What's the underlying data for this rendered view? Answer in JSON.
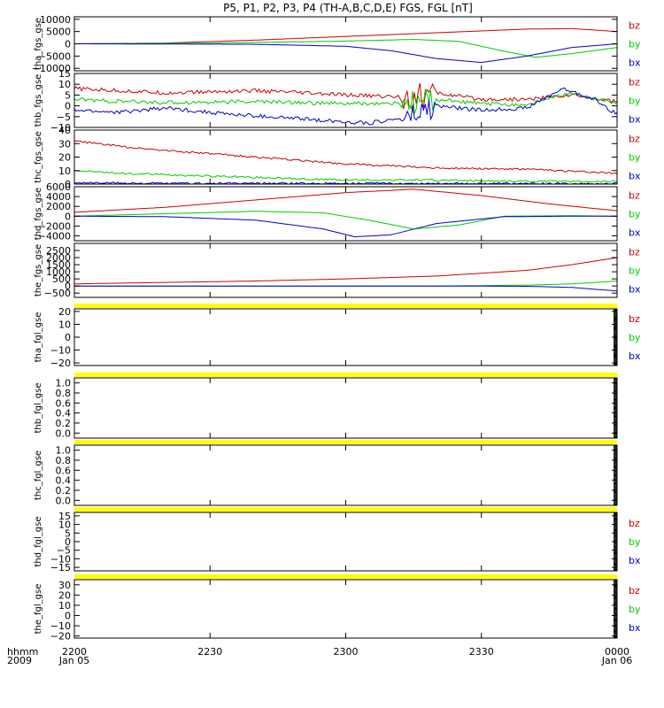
{
  "title": "P5, P1, P2, P3, P4 (TH-A,B,C,D,E) FGS, FGL [nT]",
  "x_axis": {
    "ticks": [
      {
        "label": "2200",
        "sub": "Jan 05",
        "t": 0
      },
      {
        "label": "2230",
        "sub": "",
        "t": 30
      },
      {
        "label": "2300",
        "sub": "",
        "t": 60
      },
      {
        "label": "2330",
        "sub": "",
        "t": 90
      },
      {
        "label": "0000",
        "sub": "Jan 06",
        "t": 120
      }
    ],
    "corner_label": "hhmm",
    "corner_year": "2009",
    "range_minutes": [
      0,
      120
    ]
  },
  "colors": {
    "bz": "#cc0000",
    "by": "#00cc00",
    "bx": "#0000cc",
    "gap": "#ffff00",
    "axis": "#000000"
  },
  "chart_data": [
    {
      "type": "line",
      "ylabel": "tha_fgs_gse",
      "ylim": [
        -11000,
        11000
      ],
      "yticks": [
        {
          "v": 10000,
          "l": "10000"
        },
        {
          "v": 5000,
          "l": "5000"
        },
        {
          "v": 0,
          "l": "0"
        },
        {
          "v": -5000,
          "l": "−5000"
        },
        {
          "v": -10000,
          "l": "−10000"
        }
      ],
      "legend": [
        "bz",
        "by",
        "bx"
      ],
      "gap_above": false,
      "series": [
        {
          "name": "bz",
          "x": [
            0,
            20,
            40,
            60,
            80,
            100,
            110,
            120
          ],
          "y": [
            0,
            300,
            1500,
            3000,
            4500,
            6000,
            6200,
            5000
          ]
        },
        {
          "name": "by",
          "x": [
            0,
            30,
            60,
            75,
            85,
            95,
            102,
            110,
            120
          ],
          "y": [
            0,
            300,
            1100,
            1800,
            1000,
            -3000,
            -5500,
            -4000,
            -1500
          ]
        },
        {
          "name": "bx",
          "x": [
            0,
            40,
            60,
            70,
            80,
            90,
            100,
            110,
            120
          ],
          "y": [
            0,
            -200,
            -1000,
            -2800,
            -6000,
            -7600,
            -5000,
            -1500,
            0
          ]
        }
      ]
    },
    {
      "type": "line",
      "ylabel": "thb_fgs_gse",
      "ylim": [
        -10,
        15
      ],
      "yticks": [
        {
          "v": 15,
          "l": "15"
        },
        {
          "v": 10,
          "l": "10"
        },
        {
          "v": 5,
          "l": "5"
        },
        {
          "v": 0,
          "l": "0"
        },
        {
          "v": -5,
          "l": "−5"
        },
        {
          "v": -10,
          "l": "−10"
        }
      ],
      "legend": [
        "bz",
        "by",
        "bx"
      ],
      "gap_above": false,
      "series": [
        {
          "name": "bz",
          "x": [
            0,
            10,
            20,
            40,
            60,
            75,
            80,
            90,
            100,
            110,
            120
          ],
          "y": [
            8,
            7,
            6,
            7,
            5,
            4,
            6,
            3,
            3,
            5,
            2
          ]
        },
        {
          "name": "by",
          "x": [
            0,
            10,
            20,
            40,
            60,
            75,
            80,
            90,
            100,
            110,
            120
          ],
          "y": [
            3,
            2,
            1.5,
            2,
            1,
            1,
            3,
            1,
            0.5,
            6,
            1
          ]
        },
        {
          "name": "bx",
          "x": [
            0,
            10,
            20,
            35,
            50,
            65,
            75,
            80,
            90,
            100,
            108,
            115,
            120
          ],
          "y": [
            -2,
            -3,
            -1,
            -4,
            -6,
            -8,
            -5,
            0,
            -2,
            -1,
            8,
            3,
            -4
          ]
        }
      ]
    },
    {
      "type": "line",
      "ylabel": "thc_fgs_gse",
      "ylim": [
        0,
        40
      ],
      "yticks": [
        {
          "v": 40,
          "l": "40"
        },
        {
          "v": 30,
          "l": "30"
        },
        {
          "v": 20,
          "l": "20"
        },
        {
          "v": 10,
          "l": "10"
        },
        {
          "v": 0,
          "l": "0"
        }
      ],
      "legend": [
        "bz",
        "by",
        "bx"
      ],
      "gap_above": false,
      "series": [
        {
          "name": "bz",
          "x": [
            0,
            10,
            20,
            40,
            60,
            80,
            100,
            120
          ],
          "y": [
            32,
            28,
            25,
            20,
            15,
            12,
            11,
            8
          ]
        },
        {
          "name": "by",
          "x": [
            0,
            10,
            20,
            40,
            60,
            80,
            100,
            120
          ],
          "y": [
            10,
            8,
            7,
            5,
            3,
            3,
            2,
            2
          ]
        },
        {
          "name": "bx",
          "x": [
            0,
            20,
            40,
            60,
            80,
            100,
            120
          ],
          "y": [
            1,
            0.5,
            0.5,
            0.5,
            0.5,
            0.3,
            0.2
          ]
        }
      ]
    },
    {
      "type": "line",
      "ylabel": "thd_fgs_gse",
      "ylim": [
        -5000,
        6000
      ],
      "yticks": [
        {
          "v": 6000,
          "l": "6000"
        },
        {
          "v": 4000,
          "l": "4000"
        },
        {
          "v": 2000,
          "l": "2000"
        },
        {
          "v": 0,
          "l": "0"
        },
        {
          "v": -2000,
          "l": "−2000"
        },
        {
          "v": -4000,
          "l": "−4000"
        }
      ],
      "legend": [
        "bz",
        "by",
        "bx"
      ],
      "gap_above": false,
      "series": [
        {
          "name": "bz",
          "x": [
            0,
            20,
            40,
            60,
            75,
            90,
            105,
            120
          ],
          "y": [
            800,
            1800,
            3300,
            4800,
            5500,
            4200,
            2500,
            1100
          ]
        },
        {
          "name": "by",
          "x": [
            0,
            20,
            40,
            55,
            65,
            75,
            85,
            95,
            110,
            120
          ],
          "y": [
            0,
            500,
            1000,
            700,
            -800,
            -2600,
            -1800,
            0,
            100,
            0
          ]
        },
        {
          "name": "bx",
          "x": [
            0,
            20,
            40,
            55,
            62,
            70,
            80,
            95,
            110,
            120
          ],
          "y": [
            0,
            -100,
            -800,
            -2600,
            -4200,
            -3800,
            -1500,
            -100,
            0,
            0
          ]
        }
      ]
    },
    {
      "type": "line",
      "ylabel": "the_fgs_gse",
      "ylim": [
        -800,
        3000
      ],
      "yticks": [
        {
          "v": 2500,
          "l": "2500"
        },
        {
          "v": 2000,
          "l": "2000"
        },
        {
          "v": 1500,
          "l": "1500"
        },
        {
          "v": 1000,
          "l": "1000"
        },
        {
          "v": 500,
          "l": "500"
        },
        {
          "v": 0,
          "l": "0"
        },
        {
          "v": -500,
          "l": "−500"
        }
      ],
      "legend": [
        "bz",
        "by",
        "bx"
      ],
      "gap_above": false,
      "series": [
        {
          "name": "bz",
          "x": [
            0,
            20,
            40,
            60,
            80,
            100,
            110,
            120
          ],
          "y": [
            150,
            250,
            350,
            500,
            700,
            1100,
            1500,
            2000
          ]
        },
        {
          "name": "by",
          "x": [
            0,
            40,
            80,
            100,
            110,
            120
          ],
          "y": [
            0,
            0,
            0,
            60,
            150,
            350
          ]
        },
        {
          "name": "bx",
          "x": [
            0,
            40,
            80,
            100,
            110,
            120
          ],
          "y": [
            0,
            0,
            0,
            -20,
            -100,
            -350
          ]
        }
      ]
    },
    {
      "type": "line",
      "ylabel": "tha_fgl_gse",
      "ylim": [
        -22,
        22
      ],
      "yticks": [
        {
          "v": 20,
          "l": "20"
        },
        {
          "v": 10,
          "l": "10"
        },
        {
          "v": 0,
          "l": "0"
        },
        {
          "v": -10,
          "l": "−10"
        },
        {
          "v": -20,
          "l": "−20"
        }
      ],
      "legend": [
        "bz",
        "by",
        "bx"
      ],
      "gap_above": true,
      "series": []
    },
    {
      "type": "line",
      "ylabel": "thb_fgl_gse",
      "ylim": [
        -0.1,
        1.1
      ],
      "yticks": [
        {
          "v": 1.0,
          "l": "1.0"
        },
        {
          "v": 0.8,
          "l": "0.8"
        },
        {
          "v": 0.6,
          "l": "0.6"
        },
        {
          "v": 0.4,
          "l": "0.4"
        },
        {
          "v": 0.2,
          "l": "0.2"
        },
        {
          "v": 0.0,
          "l": "0.0"
        }
      ],
      "legend": [],
      "gap_above": true,
      "series": []
    },
    {
      "type": "line",
      "ylabel": "thc_fgl_gse",
      "ylim": [
        -0.1,
        1.1
      ],
      "yticks": [
        {
          "v": 1.0,
          "l": "1.0"
        },
        {
          "v": 0.8,
          "l": "0.8"
        },
        {
          "v": 0.6,
          "l": "0.6"
        },
        {
          "v": 0.4,
          "l": "0.4"
        },
        {
          "v": 0.2,
          "l": "0.2"
        },
        {
          "v": 0.0,
          "l": "0.0"
        }
      ],
      "legend": [],
      "gap_above": true,
      "series": []
    },
    {
      "type": "line",
      "ylabel": "thd_fgl_gse",
      "ylim": [
        -17,
        17
      ],
      "yticks": [
        {
          "v": 15,
          "l": "15"
        },
        {
          "v": 10,
          "l": "10"
        },
        {
          "v": 5,
          "l": "5"
        },
        {
          "v": 0,
          "l": "0"
        },
        {
          "v": -5,
          "l": "−5"
        },
        {
          "v": -10,
          "l": "−10"
        },
        {
          "v": -15,
          "l": "−15"
        }
      ],
      "legend": [
        "bz",
        "by",
        "bx"
      ],
      "gap_above": true,
      "series": []
    },
    {
      "type": "line",
      "ylabel": "the_fgl_gse",
      "ylim": [
        -22,
        35
      ],
      "yticks": [
        {
          "v": 30,
          "l": "30"
        },
        {
          "v": 20,
          "l": "20"
        },
        {
          "v": 10,
          "l": "10"
        },
        {
          "v": 0,
          "l": "0"
        },
        {
          "v": -10,
          "l": "−10"
        },
        {
          "v": -20,
          "l": "−20"
        }
      ],
      "legend": [
        "bz",
        "by",
        "bx"
      ],
      "gap_above": true,
      "series": []
    }
  ]
}
